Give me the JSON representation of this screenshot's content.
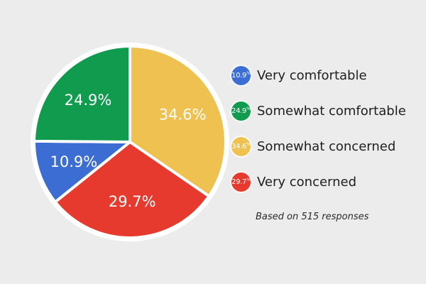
{
  "background_color": "#ECECEC",
  "chart_data": {
    "type": "pie",
    "title": "",
    "unit": "%",
    "slices": [
      {
        "label": "Very comfortable",
        "value": 10.9,
        "color": "#3B6DD3"
      },
      {
        "label": "Somewhat comfortable",
        "value": 24.9,
        "color": "#119B4E"
      },
      {
        "label": "Somewhat concerned",
        "value": 34.6,
        "color": "#EFC150"
      },
      {
        "label": "Very concerned",
        "value": 29.7,
        "color": "#E73A2E"
      }
    ],
    "draw_order": [
      2,
      3,
      0,
      1
    ],
    "start_angle_deg": 0,
    "clockwise": true,
    "separator_color": "#FFFFFF",
    "legend_position": "right",
    "footnote": "Based on 515 responses"
  }
}
